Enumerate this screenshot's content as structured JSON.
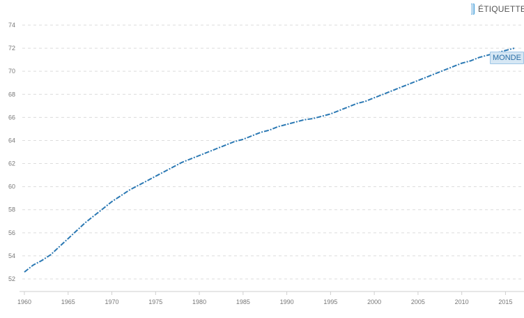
{
  "legend": {
    "label": "ÉTIQUETTE",
    "swatch_color": "#3a9bd9"
  },
  "chart_data": {
    "type": "line",
    "title": "",
    "xlabel": "",
    "ylabel": "",
    "xlim": [
      1960,
      2016
    ],
    "ylim": [
      51,
      75
    ],
    "grid": true,
    "x_ticks": [
      "1960",
      "1965",
      "1970",
      "1975",
      "1980",
      "1985",
      "1990",
      "1995",
      "2000",
      "2005",
      "2010",
      "2015"
    ],
    "y_ticks": [
      "52",
      "54",
      "56",
      "58",
      "60",
      "62",
      "64",
      "66",
      "68",
      "70",
      "72",
      "74"
    ],
    "series": [
      {
        "name": "MONDE",
        "color": "#2a78b3",
        "x": [
          1960,
          1961,
          1962,
          1963,
          1964,
          1965,
          1966,
          1967,
          1968,
          1969,
          1970,
          1971,
          1972,
          1973,
          1974,
          1975,
          1976,
          1977,
          1978,
          1979,
          1980,
          1981,
          1982,
          1983,
          1984,
          1985,
          1986,
          1987,
          1988,
          1989,
          1990,
          1991,
          1992,
          1993,
          1994,
          1995,
          1996,
          1997,
          1998,
          1999,
          2000,
          2001,
          2002,
          2003,
          2004,
          2005,
          2006,
          2007,
          2008,
          2009,
          2010,
          2011,
          2012,
          2013,
          2014,
          2015,
          2016
        ],
        "y": [
          52.6,
          53.2,
          53.6,
          54.1,
          54.8,
          55.5,
          56.2,
          56.9,
          57.5,
          58.1,
          58.7,
          59.2,
          59.7,
          60.1,
          60.5,
          60.9,
          61.3,
          61.7,
          62.1,
          62.4,
          62.7,
          63.0,
          63.3,
          63.6,
          63.9,
          64.1,
          64.4,
          64.7,
          64.9,
          65.2,
          65.4,
          65.6,
          65.8,
          65.9,
          66.1,
          66.3,
          66.6,
          66.9,
          67.2,
          67.4,
          67.7,
          68.0,
          68.3,
          68.6,
          68.9,
          69.2,
          69.5,
          69.8,
          70.1,
          70.4,
          70.7,
          70.9,
          71.2,
          71.4,
          71.6,
          71.8,
          72.0
        ]
      }
    ]
  }
}
